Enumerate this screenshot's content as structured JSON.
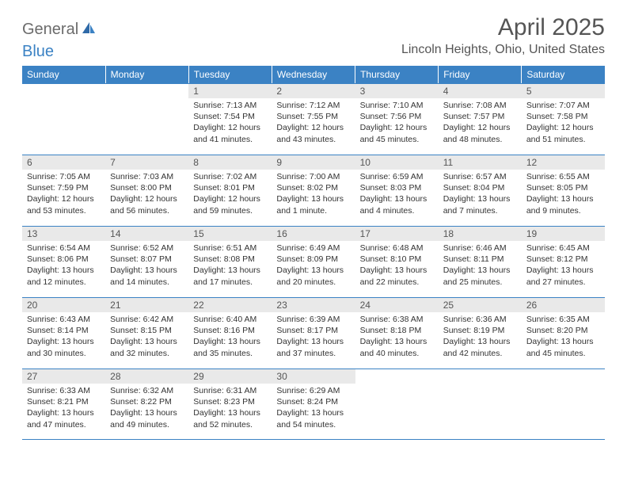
{
  "branding": {
    "logo_text_1": "General",
    "logo_text_2": "Blue",
    "logo_text1_color": "#6b6b6b",
    "logo_text2_color": "#3b82c4"
  },
  "header": {
    "month_title": "April 2025",
    "location": "Lincoln Heights, Ohio, United States"
  },
  "style": {
    "header_bg": "#3b82c4",
    "header_text": "#ffffff",
    "daynum_bg": "#e9e9e9",
    "border_color": "#3b82c4",
    "body_text": "#333333",
    "title_fontsize": 30,
    "location_fontsize": 16,
    "th_fontsize": 12,
    "cell_fontsize": 10.5
  },
  "calendar": {
    "day_headers": [
      "Sunday",
      "Monday",
      "Tuesday",
      "Wednesday",
      "Thursday",
      "Friday",
      "Saturday"
    ],
    "weeks": [
      [
        null,
        null,
        {
          "day": "1",
          "sunrise": "Sunrise: 7:13 AM",
          "sunset": "Sunset: 7:54 PM",
          "daylight1": "Daylight: 12 hours",
          "daylight2": "and 41 minutes."
        },
        {
          "day": "2",
          "sunrise": "Sunrise: 7:12 AM",
          "sunset": "Sunset: 7:55 PM",
          "daylight1": "Daylight: 12 hours",
          "daylight2": "and 43 minutes."
        },
        {
          "day": "3",
          "sunrise": "Sunrise: 7:10 AM",
          "sunset": "Sunset: 7:56 PM",
          "daylight1": "Daylight: 12 hours",
          "daylight2": "and 45 minutes."
        },
        {
          "day": "4",
          "sunrise": "Sunrise: 7:08 AM",
          "sunset": "Sunset: 7:57 PM",
          "daylight1": "Daylight: 12 hours",
          "daylight2": "and 48 minutes."
        },
        {
          "day": "5",
          "sunrise": "Sunrise: 7:07 AM",
          "sunset": "Sunset: 7:58 PM",
          "daylight1": "Daylight: 12 hours",
          "daylight2": "and 51 minutes."
        }
      ],
      [
        {
          "day": "6",
          "sunrise": "Sunrise: 7:05 AM",
          "sunset": "Sunset: 7:59 PM",
          "daylight1": "Daylight: 12 hours",
          "daylight2": "and 53 minutes."
        },
        {
          "day": "7",
          "sunrise": "Sunrise: 7:03 AM",
          "sunset": "Sunset: 8:00 PM",
          "daylight1": "Daylight: 12 hours",
          "daylight2": "and 56 minutes."
        },
        {
          "day": "8",
          "sunrise": "Sunrise: 7:02 AM",
          "sunset": "Sunset: 8:01 PM",
          "daylight1": "Daylight: 12 hours",
          "daylight2": "and 59 minutes."
        },
        {
          "day": "9",
          "sunrise": "Sunrise: 7:00 AM",
          "sunset": "Sunset: 8:02 PM",
          "daylight1": "Daylight: 13 hours",
          "daylight2": "and 1 minute."
        },
        {
          "day": "10",
          "sunrise": "Sunrise: 6:59 AM",
          "sunset": "Sunset: 8:03 PM",
          "daylight1": "Daylight: 13 hours",
          "daylight2": "and 4 minutes."
        },
        {
          "day": "11",
          "sunrise": "Sunrise: 6:57 AM",
          "sunset": "Sunset: 8:04 PM",
          "daylight1": "Daylight: 13 hours",
          "daylight2": "and 7 minutes."
        },
        {
          "day": "12",
          "sunrise": "Sunrise: 6:55 AM",
          "sunset": "Sunset: 8:05 PM",
          "daylight1": "Daylight: 13 hours",
          "daylight2": "and 9 minutes."
        }
      ],
      [
        {
          "day": "13",
          "sunrise": "Sunrise: 6:54 AM",
          "sunset": "Sunset: 8:06 PM",
          "daylight1": "Daylight: 13 hours",
          "daylight2": "and 12 minutes."
        },
        {
          "day": "14",
          "sunrise": "Sunrise: 6:52 AM",
          "sunset": "Sunset: 8:07 PM",
          "daylight1": "Daylight: 13 hours",
          "daylight2": "and 14 minutes."
        },
        {
          "day": "15",
          "sunrise": "Sunrise: 6:51 AM",
          "sunset": "Sunset: 8:08 PM",
          "daylight1": "Daylight: 13 hours",
          "daylight2": "and 17 minutes."
        },
        {
          "day": "16",
          "sunrise": "Sunrise: 6:49 AM",
          "sunset": "Sunset: 8:09 PM",
          "daylight1": "Daylight: 13 hours",
          "daylight2": "and 20 minutes."
        },
        {
          "day": "17",
          "sunrise": "Sunrise: 6:48 AM",
          "sunset": "Sunset: 8:10 PM",
          "daylight1": "Daylight: 13 hours",
          "daylight2": "and 22 minutes."
        },
        {
          "day": "18",
          "sunrise": "Sunrise: 6:46 AM",
          "sunset": "Sunset: 8:11 PM",
          "daylight1": "Daylight: 13 hours",
          "daylight2": "and 25 minutes."
        },
        {
          "day": "19",
          "sunrise": "Sunrise: 6:45 AM",
          "sunset": "Sunset: 8:12 PM",
          "daylight1": "Daylight: 13 hours",
          "daylight2": "and 27 minutes."
        }
      ],
      [
        {
          "day": "20",
          "sunrise": "Sunrise: 6:43 AM",
          "sunset": "Sunset: 8:14 PM",
          "daylight1": "Daylight: 13 hours",
          "daylight2": "and 30 minutes."
        },
        {
          "day": "21",
          "sunrise": "Sunrise: 6:42 AM",
          "sunset": "Sunset: 8:15 PM",
          "daylight1": "Daylight: 13 hours",
          "daylight2": "and 32 minutes."
        },
        {
          "day": "22",
          "sunrise": "Sunrise: 6:40 AM",
          "sunset": "Sunset: 8:16 PM",
          "daylight1": "Daylight: 13 hours",
          "daylight2": "and 35 minutes."
        },
        {
          "day": "23",
          "sunrise": "Sunrise: 6:39 AM",
          "sunset": "Sunset: 8:17 PM",
          "daylight1": "Daylight: 13 hours",
          "daylight2": "and 37 minutes."
        },
        {
          "day": "24",
          "sunrise": "Sunrise: 6:38 AM",
          "sunset": "Sunset: 8:18 PM",
          "daylight1": "Daylight: 13 hours",
          "daylight2": "and 40 minutes."
        },
        {
          "day": "25",
          "sunrise": "Sunrise: 6:36 AM",
          "sunset": "Sunset: 8:19 PM",
          "daylight1": "Daylight: 13 hours",
          "daylight2": "and 42 minutes."
        },
        {
          "day": "26",
          "sunrise": "Sunrise: 6:35 AM",
          "sunset": "Sunset: 8:20 PM",
          "daylight1": "Daylight: 13 hours",
          "daylight2": "and 45 minutes."
        }
      ],
      [
        {
          "day": "27",
          "sunrise": "Sunrise: 6:33 AM",
          "sunset": "Sunset: 8:21 PM",
          "daylight1": "Daylight: 13 hours",
          "daylight2": "and 47 minutes."
        },
        {
          "day": "28",
          "sunrise": "Sunrise: 6:32 AM",
          "sunset": "Sunset: 8:22 PM",
          "daylight1": "Daylight: 13 hours",
          "daylight2": "and 49 minutes."
        },
        {
          "day": "29",
          "sunrise": "Sunrise: 6:31 AM",
          "sunset": "Sunset: 8:23 PM",
          "daylight1": "Daylight: 13 hours",
          "daylight2": "and 52 minutes."
        },
        {
          "day": "30",
          "sunrise": "Sunrise: 6:29 AM",
          "sunset": "Sunset: 8:24 PM",
          "daylight1": "Daylight: 13 hours",
          "daylight2": "and 54 minutes."
        },
        null,
        null,
        null
      ]
    ]
  }
}
